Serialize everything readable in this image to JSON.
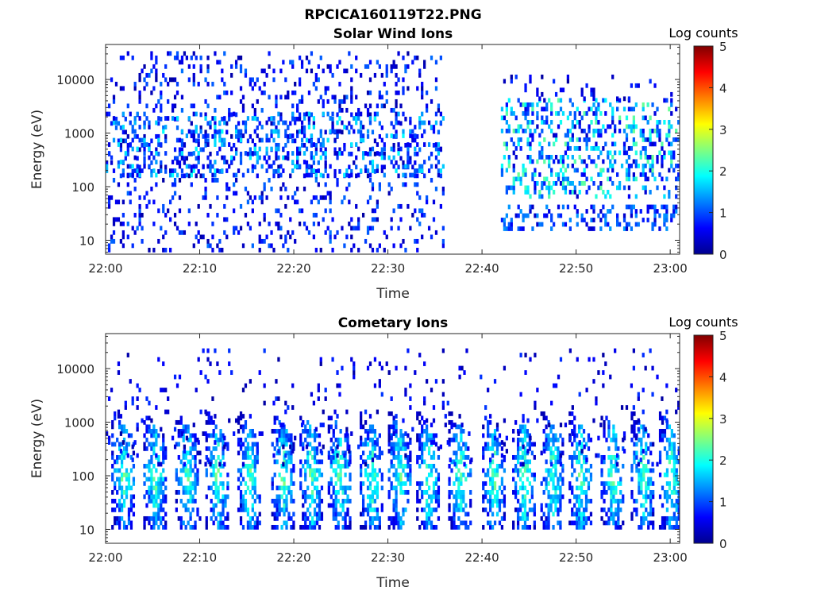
{
  "figure_title": "RPCICA160119T22.PNG",
  "chart_data": [
    {
      "type": "heatmap",
      "title": "Solar Wind Ions",
      "xlabel": "Time",
      "ylabel": "Energy (eV)",
      "x_ticks": [
        "22:00",
        "22:10",
        "22:20",
        "22:30",
        "22:40",
        "22:50",
        "23:00"
      ],
      "x_range_minutes": [
        0,
        61
      ],
      "y_scale": "log",
      "y_ticks": [
        "10",
        "100",
        "1000",
        "10000"
      ],
      "y_range_eV": [
        5.5,
        45000
      ],
      "colorbar": {
        "label": "Log counts",
        "range": [
          0,
          5
        ],
        "ticks": [
          "0",
          "1",
          "2",
          "3",
          "4",
          "5"
        ],
        "colormap": "jet"
      },
      "grid": false,
      "bands": [
        {
          "t": [
            0,
            36
          ],
          "e": [
            6,
            30000
          ],
          "density": 0.14,
          "lvl": [
            0.1,
            1.2
          ]
        },
        {
          "t": [
            0,
            36
          ],
          "e": [
            150,
            2500
          ],
          "density": 0.22,
          "lvl": [
            0.3,
            1.9
          ]
        },
        {
          "t": [
            42,
            61
          ],
          "e": [
            60,
            4000
          ],
          "density": 0.3,
          "lvl": [
            0.3,
            2.4
          ]
        },
        {
          "t": [
            42,
            61
          ],
          "e": [
            15,
            40
          ],
          "density": 0.3,
          "lvl": [
            0.3,
            1.4
          ]
        },
        {
          "t": [
            42,
            61
          ],
          "e": [
            4000,
            12000
          ],
          "density": 0.08,
          "lvl": [
            0.1,
            0.9
          ]
        }
      ]
    },
    {
      "type": "heatmap",
      "title": "Cometary Ions",
      "xlabel": "Time",
      "ylabel": "Energy (eV)",
      "x_ticks": [
        "22:00",
        "22:10",
        "22:20",
        "22:30",
        "22:40",
        "22:50",
        "23:00"
      ],
      "x_range_minutes": [
        0,
        61
      ],
      "y_scale": "log",
      "y_ticks": [
        "10",
        "100",
        "1000",
        "10000"
      ],
      "y_range_eV": [
        5.5,
        45000
      ],
      "colorbar": {
        "label": "Log counts",
        "range": [
          0,
          5
        ],
        "ticks": [
          "0",
          "1",
          "2",
          "3",
          "4",
          "5"
        ],
        "colormap": "jet"
      },
      "grid": false,
      "bursts_minutes": [
        1.8,
        5.2,
        8.6,
        11.8,
        15.2,
        18.8,
        21.8,
        24.8,
        28.2,
        31.2,
        34.2,
        37.6,
        41.2,
        44.4,
        47.4,
        50.4,
        53.8,
        57.0,
        60.0
      ],
      "burst_energy_eV": [
        10,
        1500
      ],
      "background": {
        "t": [
          0,
          61
        ],
        "e": [
          150,
          22000
        ],
        "density": 0.05,
        "lvl": [
          0.1,
          0.9
        ]
      }
    }
  ]
}
